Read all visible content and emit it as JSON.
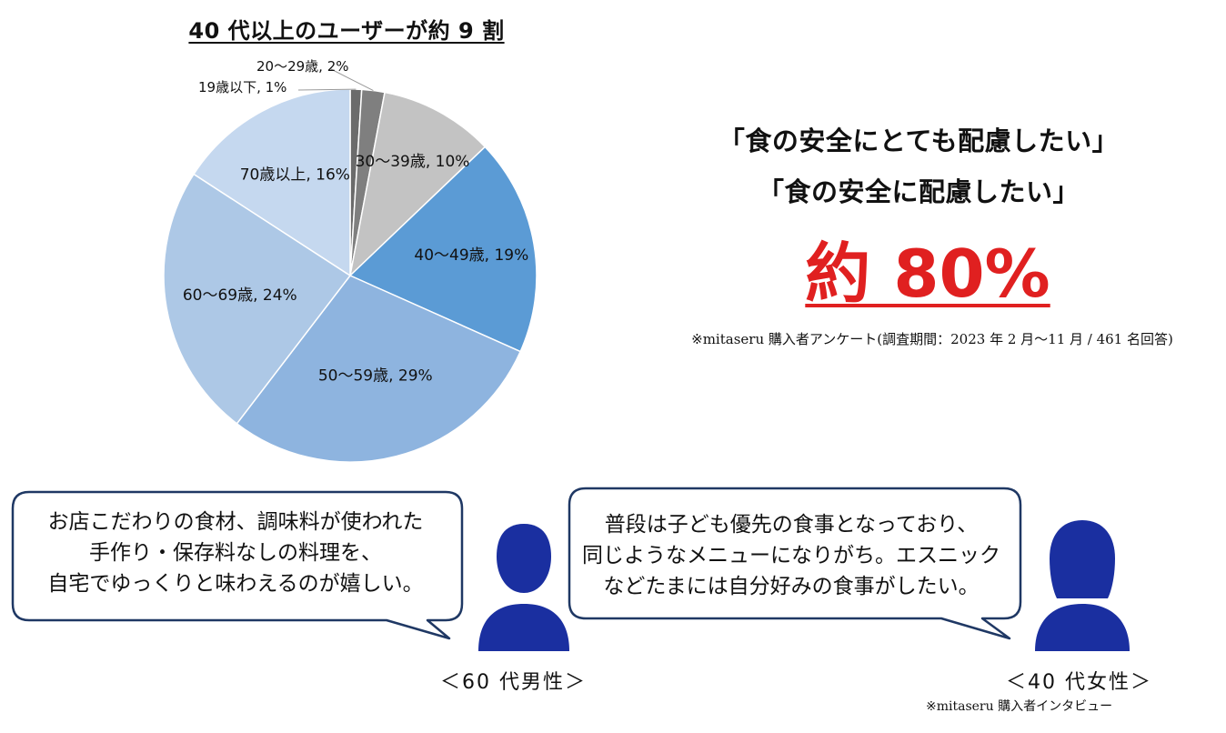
{
  "colors": {
    "slice_under19": "#6b6b6b",
    "slice_20s": "#7f7f7f",
    "slice_30s": "#c3c3c3",
    "slice_40s": "#5b9bd5",
    "slice_50s": "#8eb4df",
    "slice_60s": "#adc8e6",
    "slice_70s": "#c5d8ef",
    "accent_red": "#e02020",
    "silhouette": "#1a2fa0",
    "bubble_border": "#1f3864"
  },
  "chart_data": {
    "type": "pie",
    "title": "40 代以上のユーザーが約 9 割",
    "start": "12 o'clock",
    "direction": "clockwise",
    "slices": [
      {
        "category": "19歳以下",
        "value": 1,
        "label": "19歳以下, 1%",
        "color": "#6b6b6b"
      },
      {
        "category": "20～29歳",
        "value": 2,
        "label": "20～29歳, 2%",
        "color": "#7f7f7f"
      },
      {
        "category": "30～39歳",
        "value": 10,
        "label": "30～39歳, 10%",
        "color": "#c3c3c3"
      },
      {
        "category": "40～49歳",
        "value": 19,
        "label": "40～49歳, 19%",
        "color": "#5b9bd5"
      },
      {
        "category": "50～59歳",
        "value": 29,
        "label": "50～59歳, 29%",
        "color": "#8eb4df"
      },
      {
        "category": "60～69歳",
        "value": 24,
        "label": "60～69歳, 24%",
        "color": "#adc8e6"
      },
      {
        "category": "70歳以上",
        "value": 16,
        "label": "70歳以上, 16%",
        "color": "#c5d8ef"
      }
    ]
  },
  "quotes": {
    "line1": "「食の安全にとても配慮したい」",
    "line2": "「食の安全に配慮したい」",
    "big_stat": "約 80%",
    "survey_note": "※mitaseru 購入者アンケート(調査期間：2023 年 2 月～11 月 / 461 名回答)"
  },
  "testimonials": {
    "man": {
      "lines": [
        "お店こだわりの食材、調味料が使われた",
        "手作り・保存料なしの料理を、",
        "自宅でゆっくりと味わえるのが嬉しい。"
      ],
      "label": "＜60 代男性＞"
    },
    "woman": {
      "lines": [
        "普段は子ども優先の食事となっており、",
        "同じようなメニューになりがち。エスニック",
        "などたまには自分好みの食事がしたい。"
      ],
      "label": "＜40 代女性＞"
    },
    "interview_note": "※mitaseru 購入者インタビュー"
  }
}
